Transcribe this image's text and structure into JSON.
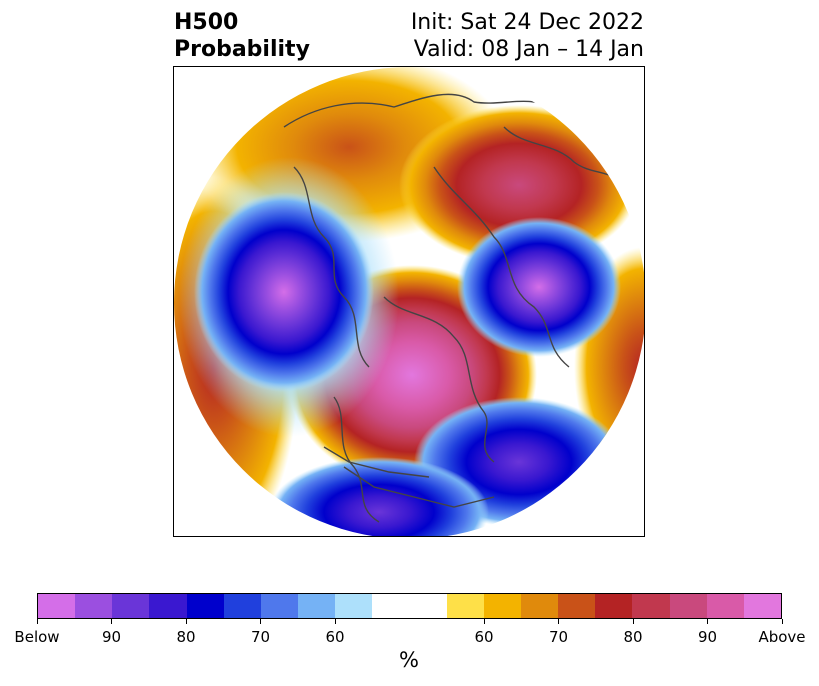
{
  "title": {
    "left_line1": "H500",
    "left_line2": "Probability",
    "right_line1": "Init: Sat 24 Dec 2022",
    "right_line2": "Valid: 08 Jan – 14 Jan"
  },
  "colorbar": {
    "unit": "%",
    "below_colors": [
      "#d46ee8",
      "#9b4fe0",
      "#6a35d8",
      "#3a18d0",
      "#0000cc",
      "#2040dd",
      "#4f78ec",
      "#75b2f5",
      "#ade0fb"
    ],
    "neutral_color": "#ffffff",
    "above_colors": [
      "#fee048",
      "#f3b300",
      "#e08a0c",
      "#c95218",
      "#b42324",
      "#c1384e",
      "#c9497d",
      "#d95aa8",
      "#e277de"
    ],
    "tick_labels": [
      "Below",
      "90",
      "80",
      "70",
      "60",
      "60",
      "70",
      "80",
      "90",
      "Above"
    ]
  }
}
